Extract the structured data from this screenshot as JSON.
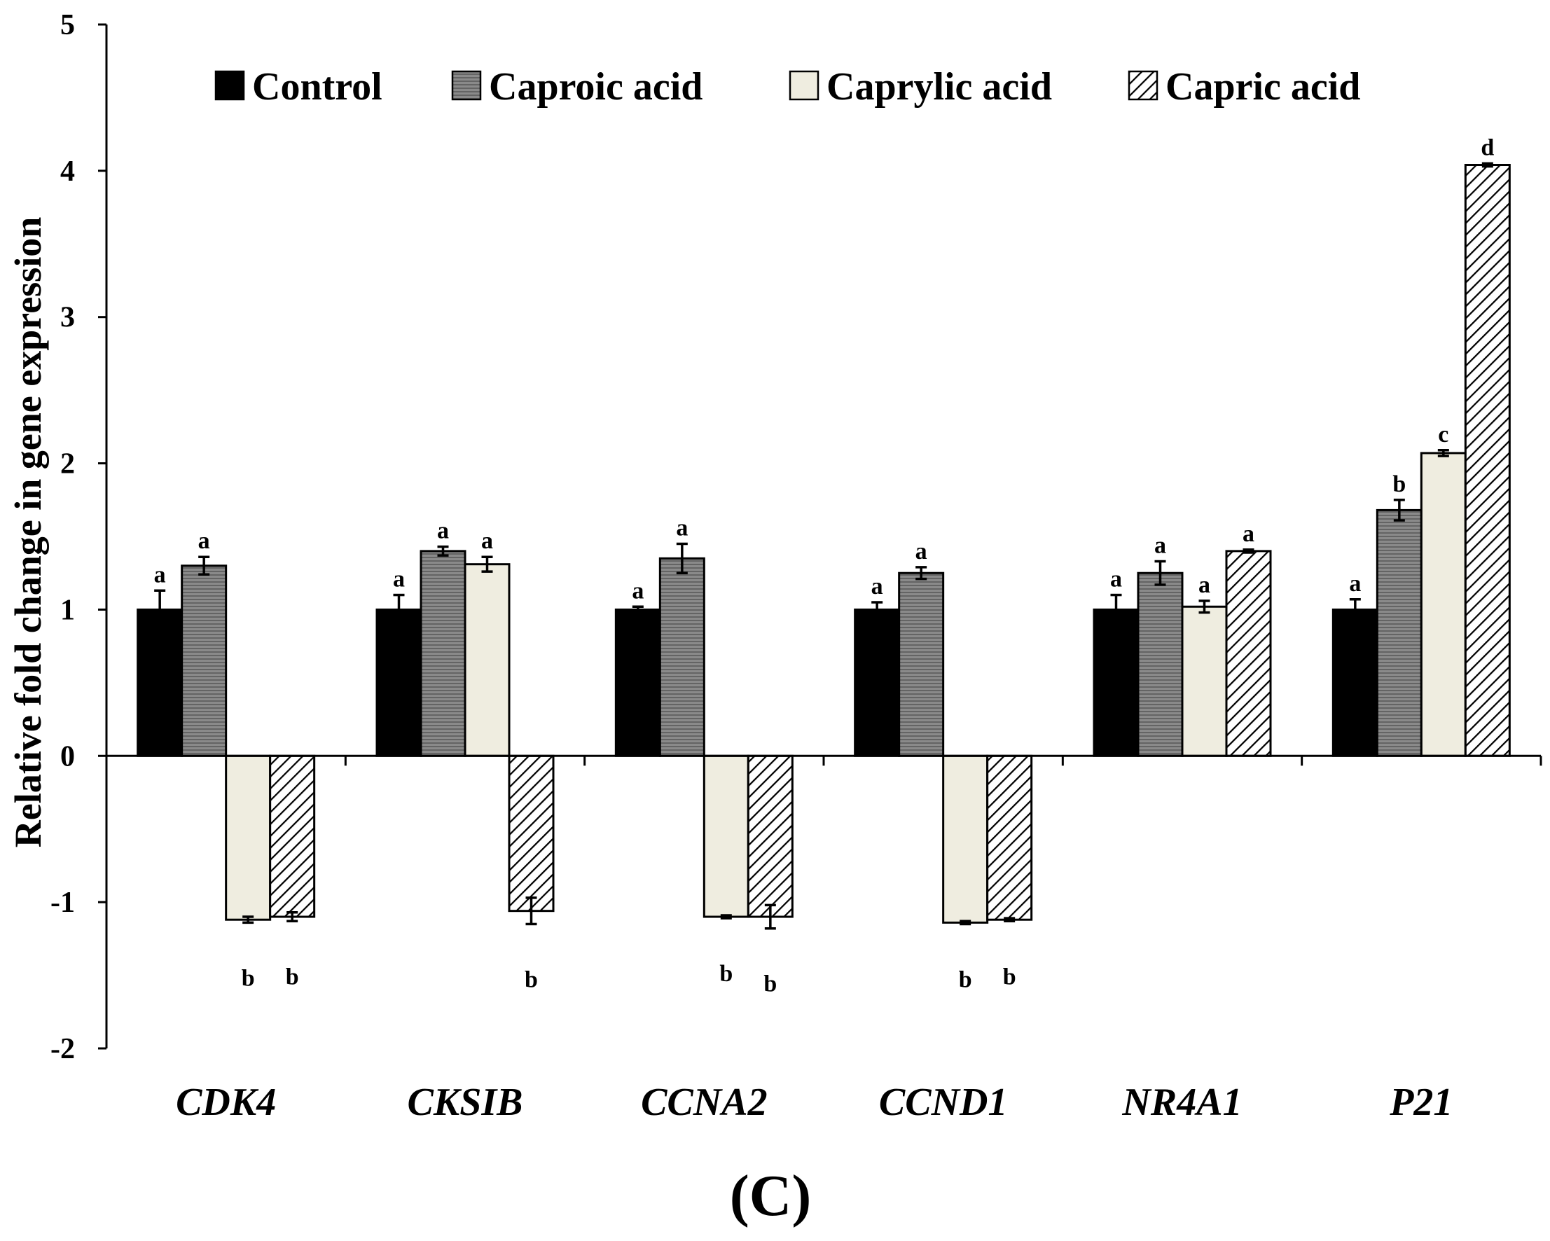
{
  "chart_data": {
    "type": "bar",
    "title": "",
    "xlabel": "",
    "ylabel": "Relative fold change in gene expression",
    "panel_label": "(C)",
    "ylim": [
      -2,
      5
    ],
    "yticks": [
      "5",
      "4",
      "3",
      "2",
      "1",
      "0",
      "-1",
      "-2"
    ],
    "ytick_values": [
      5,
      4,
      3,
      2,
      1,
      0,
      -1,
      -2
    ],
    "categories": [
      "CDK4",
      "CKSIB",
      "CCNA2",
      "CCND1",
      "NR4A1",
      "P21"
    ],
    "legend_position": "top",
    "series": [
      {
        "name": "Control",
        "pattern": "solid-black",
        "values": [
          1.0,
          1.0,
          1.0,
          1.0,
          1.0,
          1.0
        ],
        "errors": [
          0.13,
          0.1,
          0.02,
          0.05,
          0.1,
          0.07
        ],
        "letters": [
          "a",
          "a",
          "a",
          "a",
          "a",
          "a"
        ]
      },
      {
        "name": "Caproic acid",
        "pattern": "horizontal-lines-gray",
        "values": [
          1.3,
          1.4,
          1.35,
          1.25,
          1.25,
          1.68
        ],
        "errors": [
          0.06,
          0.03,
          0.1,
          0.04,
          0.08,
          0.07
        ],
        "letters": [
          "a",
          "a",
          "a",
          "a",
          "a",
          "b"
        ]
      },
      {
        "name": "Caprylic acid",
        "pattern": "light-beige",
        "values": [
          -1.12,
          1.31,
          -1.1,
          -1.14,
          1.02,
          2.07
        ],
        "errors": [
          0.02,
          0.05,
          0.01,
          0.01,
          0.04,
          0.02
        ],
        "letters": [
          "b",
          "a",
          "b",
          "b",
          "a",
          "c"
        ]
      },
      {
        "name": "Capric acid",
        "pattern": "diagonal-hatch",
        "values": [
          -1.1,
          -1.06,
          -1.1,
          -1.12,
          1.4,
          4.04
        ],
        "errors": [
          0.03,
          0.09,
          0.08,
          0.01,
          0.01,
          0.01
        ],
        "letters": [
          "b",
          "b",
          "b",
          "b",
          "a",
          "d"
        ]
      }
    ]
  },
  "colors": {
    "control": "#000000",
    "caproic": "#8a8a8a",
    "caprylic": "#efede0",
    "capric": "#ffffff",
    "axis": "#000000"
  }
}
